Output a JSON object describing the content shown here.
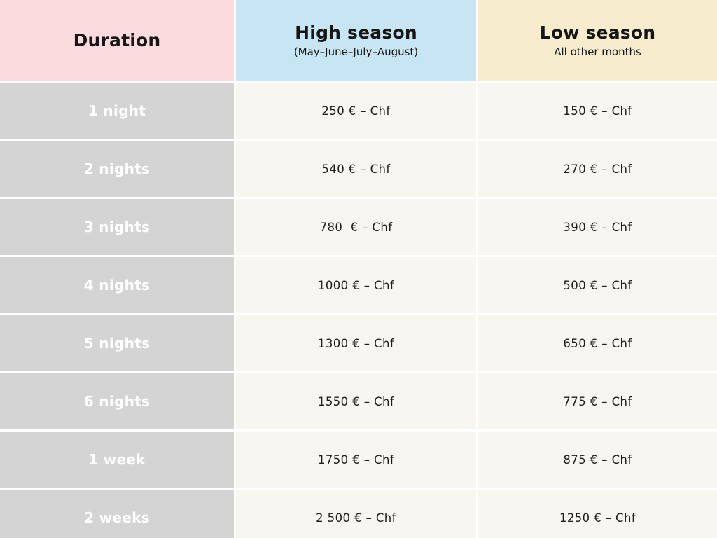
{
  "table": {
    "header": {
      "duration_label": "Duration",
      "high_season": {
        "title": "High season",
        "subtitle": "(May–June–July–August)"
      },
      "low_season": {
        "title": "Low season",
        "subtitle": "All other months"
      }
    },
    "columns": [
      "Duration",
      "High season",
      "Low season"
    ],
    "rows": [
      {
        "duration": "1 night",
        "high_price": "250 € – Chf",
        "low_price": "150 € – Chf"
      },
      {
        "duration": "2 nights",
        "high_price": "540 € – Chf",
        "low_price": "270 € – Chf"
      },
      {
        "duration": "3 nights",
        "high_price": "780  € – Chf",
        "low_price": "390 € – Chf"
      },
      {
        "duration": "4 nights",
        "high_price": "1000 € – Chf",
        "low_price": "500 € – Chf"
      },
      {
        "duration": "5 nights",
        "high_price": "1300 € – Chf",
        "low_price": "650 € – Chf"
      },
      {
        "duration": "6 nights",
        "high_price": "1550 € – Chf",
        "low_price": "775 € – Chf"
      },
      {
        "duration": "1 week",
        "high_price": "1750 € – Chf",
        "low_price": "875 € – Chf"
      },
      {
        "duration": "2 weeks",
        "high_price": "2 500 € – Chf",
        "low_price": "1250 € – Chf"
      }
    ],
    "colors": {
      "duration_header_bg": "#fcdbde",
      "high_season_header_bg": "#c7e5f2",
      "low_season_header_bg": "#f7ecce",
      "duration_cell_bg": "#d5d4d4",
      "price_cell_bg": "#f8f6f1",
      "gap_color": "#ffffff",
      "header_text": "#161616",
      "price_text": "#1d1d1b",
      "duration_text": "#ffffff"
    }
  }
}
